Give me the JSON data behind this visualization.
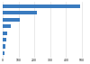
{
  "values": [
    490,
    215,
    110,
    48,
    30,
    22,
    18,
    12
  ],
  "bar_color": "#3a7bbf",
  "background_color": "#ffffff",
  "grid_color": "#d9d9d9",
  "xlim": [
    0,
    540
  ],
  "bar_height": 0.55,
  "xticks": [
    0,
    100,
    200,
    300,
    400,
    500
  ],
  "xtick_labels": [
    "0",
    "100",
    "200",
    "300",
    "400",
    "500"
  ],
  "figsize": [
    1.0,
    0.71
  ],
  "dpi": 100
}
